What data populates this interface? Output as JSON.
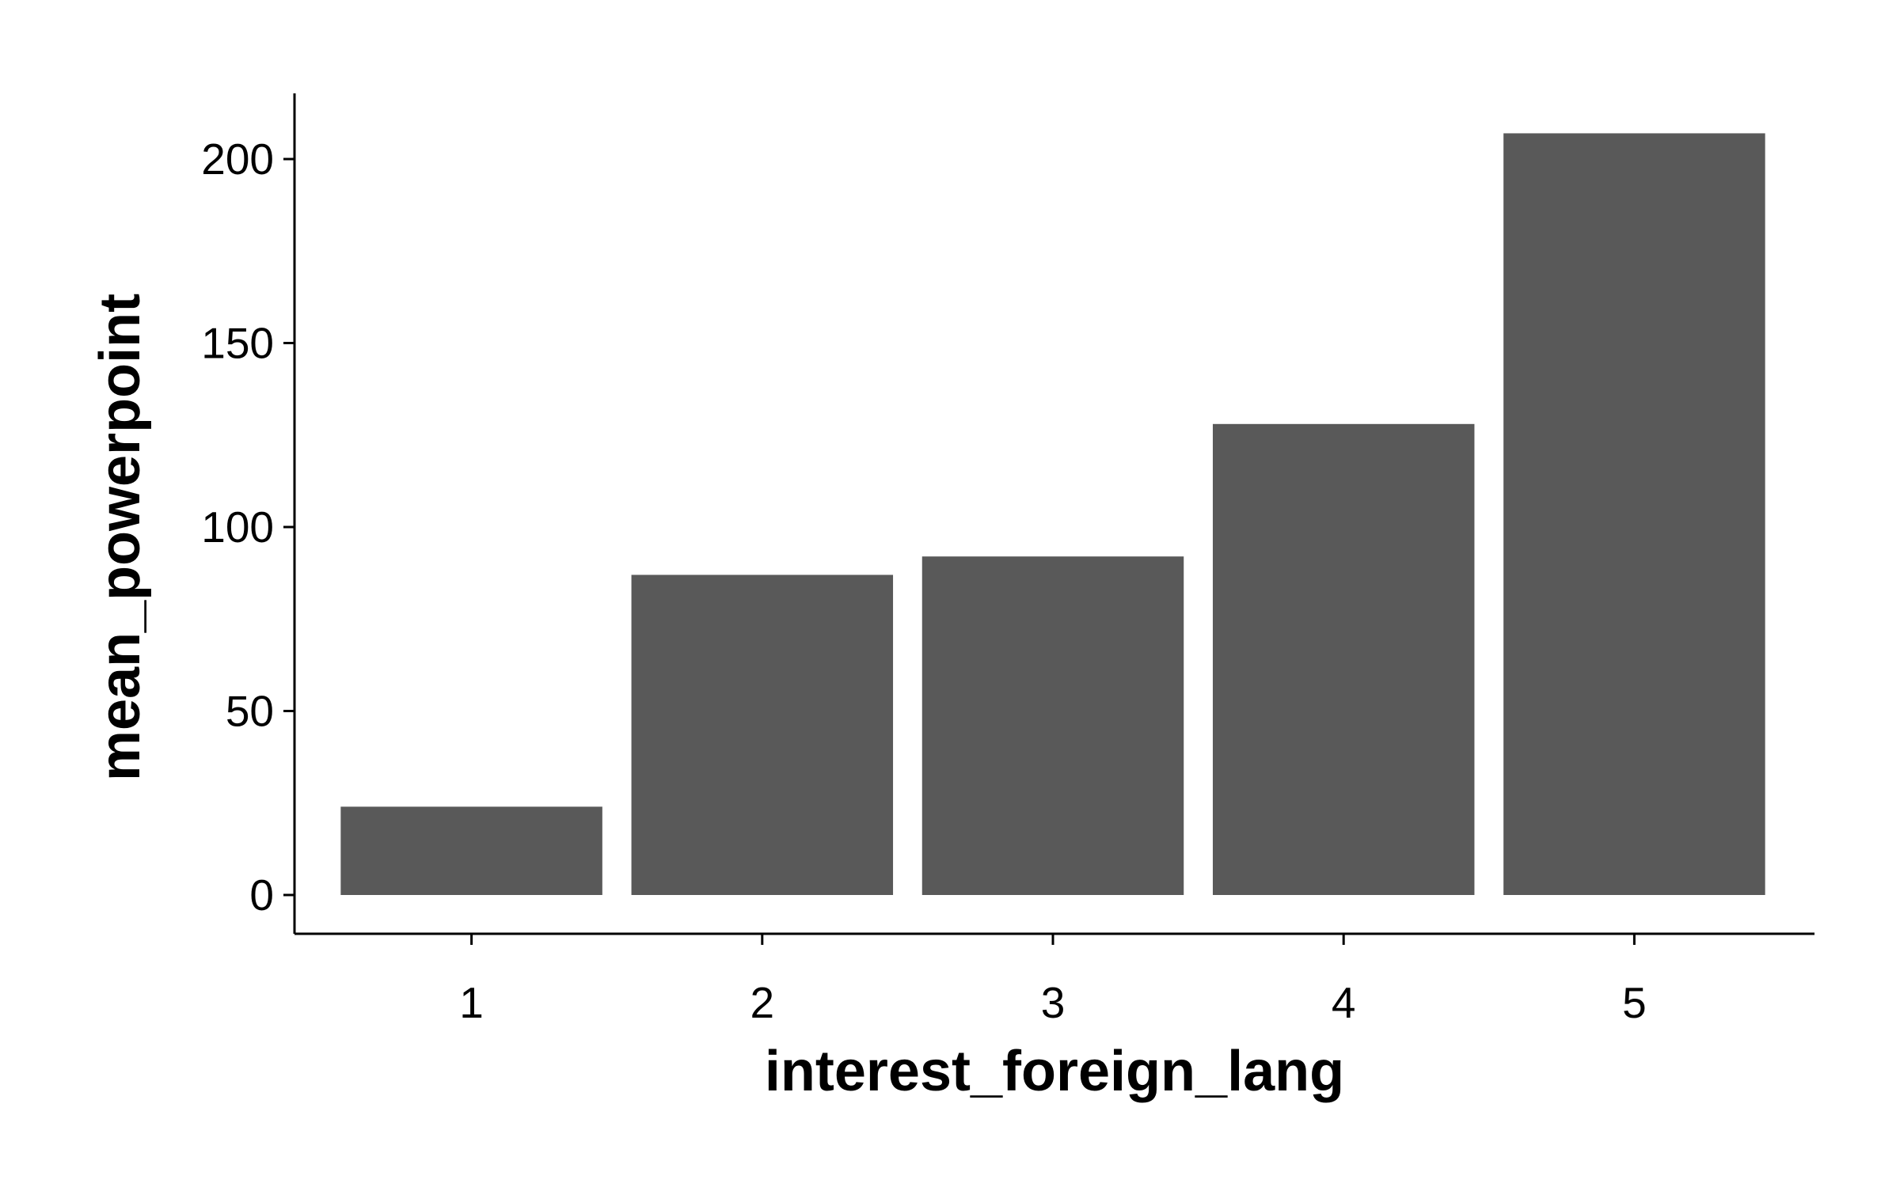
{
  "chart_data": {
    "type": "bar",
    "categories": [
      "1",
      "2",
      "3",
      "4",
      "5"
    ],
    "values": [
      24,
      87,
      92,
      128,
      207
    ],
    "title": "",
    "xlabel": "interest_foreign_lang",
    "ylabel": "mean_powerpoint",
    "ylim": [
      0,
      200
    ],
    "yticks": [
      "0",
      "50",
      "100",
      "150",
      "200"
    ],
    "grid": false,
    "legend": "none",
    "bar_color": "#595959"
  }
}
